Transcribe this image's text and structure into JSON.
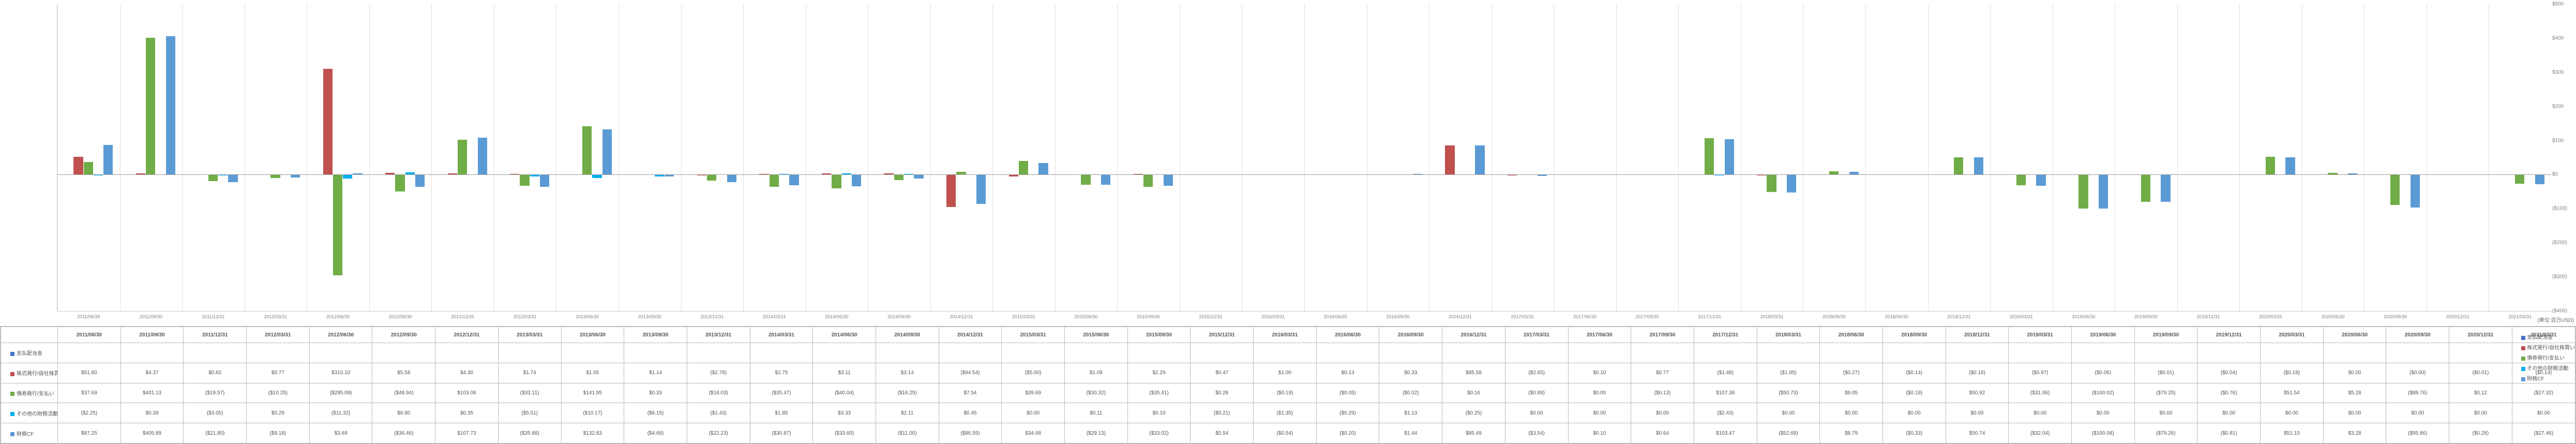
{
  "unit_label": "(単位:百万USD)",
  "chart": {
    "type": "bar",
    "y_min": -400,
    "y_max": 500,
    "y_step": 100,
    "gridline_color": "#e0e0e0",
    "background_color": "#ffffff",
    "categories": [
      "2011/06/30",
      "2011/09/30",
      "2011/12/31",
      "2012/03/31",
      "2012/06/30",
      "2012/09/30",
      "2012/12/31",
      "2013/03/31",
      "2013/06/30",
      "2013/09/30",
      "2013/12/31",
      "2014/03/31",
      "2014/06/30",
      "2014/09/30",
      "2014/12/31",
      "2015/03/31",
      "2015/06/30",
      "2015/09/30",
      "2015/12/31",
      "2016/03/31",
      "2016/06/30",
      "2016/09/30",
      "2016/12/31",
      "2017/03/31",
      "2017/06/30",
      "2017/09/30",
      "2017/12/31",
      "2018/03/31",
      "2018/06/30",
      "2018/09/30",
      "2018/12/31",
      "2019/03/31",
      "2019/06/30",
      "2019/09/30",
      "2019/12/31",
      "2020/03/31",
      "2020/06/30",
      "2020/09/30",
      "2020/12/31",
      "2021/03/31"
    ],
    "series": [
      {
        "name": "支払配当金",
        "color": "#4472c4",
        "values": [
          0,
          0,
          0,
          0,
          0,
          0,
          0,
          0,
          0,
          0,
          0,
          0,
          0,
          0,
          0,
          0,
          0,
          0,
          0,
          0,
          0,
          0,
          0,
          0,
          0,
          0,
          0,
          0,
          0,
          0,
          0,
          0,
          0,
          0,
          0,
          0,
          0,
          0,
          0,
          0
        ]
      },
      {
        "name": "株式発行/自社株買い",
        "color": "#c0504d",
        "values": [
          51.8,
          4.37,
          0.82,
          0.77,
          310.1,
          5.58,
          4.3,
          1.74,
          1.05,
          1.14,
          -2.78,
          2.75,
          3.11,
          3.14,
          -94.54,
          -5.0,
          1.09,
          2.29,
          0.47,
          1.0,
          0.13,
          0.33,
          85.58,
          -2.65,
          0.1,
          0.77,
          -1.48,
          -1.95,
          -0.27,
          -0.14,
          -0.18,
          -0.97,
          -0.06,
          -0.01,
          -0.04,
          -0.18,
          0.0,
          -0.0,
          -0.01,
          -0.14
        ]
      },
      {
        "name": "債券発行/支払い",
        "color": "#70ad47",
        "values": [
          37.69,
          401.13,
          -19.57,
          -10.25,
          -295.09,
          -48.94,
          103.08,
          -32.11,
          141.95,
          0.33,
          -18.03,
          -35.47,
          -40.04,
          -16.25,
          7.54,
          39.69,
          -30.32,
          -35.41,
          0.28,
          -0.19,
          -0.05,
          -0.02,
          0.16,
          -0.89,
          0.0,
          -0.13,
          107.38,
          -50.73,
          9.05,
          -0.19,
          50.92,
          -31.06,
          -100.02,
          -79.25,
          -0.76,
          51.54,
          5.28,
          -88.76,
          0.12,
          -27.32
        ]
      },
      {
        "name": "その他の財務活動",
        "color": "#00b0f0",
        "values": [
          -2.25,
          0.39,
          -3.05,
          0.29,
          -11.32,
          6.9,
          0.35,
          -5.51,
          -10.17,
          -6.15,
          -1.43,
          1.85,
          3.33,
          2.11,
          0.45,
          0.0,
          0.11,
          0.1,
          -0.21,
          -1.35,
          -0.29,
          1.13,
          -0.25,
          0.0,
          0.0,
          0.0,
          -2.43,
          0.0,
          0.0,
          0.0,
          0.0,
          0.0,
          0.0,
          0.0,
          0.0,
          0.0,
          0.0,
          0.0,
          0.0,
          0.0
        ]
      },
      {
        "name": "財務CF",
        "color": "#5b9bd5",
        "values": [
          87.25,
          405.89,
          -21.8,
          -9.18,
          3.69,
          -36.46,
          107.73,
          -35.88,
          132.83,
          -4.68,
          -22.23,
          -30.87,
          -33.6,
          -11.0,
          -86.55,
          34.68,
          -29.13,
          -33.02,
          0.54,
          -0.54,
          -0.2,
          1.44,
          85.49,
          -3.54,
          0.1,
          0.64,
          103.47,
          -52.68,
          8.79,
          -0.33,
          50.74,
          -32.04,
          -100.08,
          -79.26,
          -0.81,
          51.1,
          3.28,
          -95.86,
          -0.28,
          -27.46
        ]
      }
    ]
  },
  "table": {
    "header_empty": "",
    "columns": [
      "2011/06/30",
      "2011/09/30",
      "2011/12/31",
      "2012/03/31",
      "2012/06/30",
      "2012/09/30",
      "2012/12/31",
      "2013/03/31",
      "2013/06/30",
      "2013/09/30",
      "2013/12/31",
      "2014/03/31",
      "2014/06/30",
      "2014/09/30",
      "2014/12/31",
      "2015/03/31",
      "2015/06/30",
      "2015/09/30",
      "2015/12/31",
      "2016/03/31",
      "2016/06/30",
      "2016/09/30",
      "2016/12/31",
      "2017/03/31",
      "2017/06/30",
      "2017/09/30",
      "2017/12/31",
      "2018/03/31",
      "2018/06/30",
      "2018/09/30",
      "2018/12/31",
      "2019/03/31",
      "2019/06/30",
      "2019/09/30",
      "2019/12/31",
      "2020/03/31",
      "2020/06/30",
      "2020/09/30",
      "2020/12/31",
      "2021/03/31"
    ],
    "rows": [
      {
        "label": "支払配当金",
        "color": "#4472c4",
        "cells": [
          "",
          "",
          "",
          "",
          "",
          "",
          "",
          "",
          "",
          "",
          "",
          "",
          "",
          "",
          "",
          "",
          "",
          "",
          "",
          "",
          "",
          "",
          "",
          "",
          "",
          "",
          "",
          "",
          "",
          "",
          "",
          "",
          "",
          "",
          "",
          "",
          "",
          "",
          "",
          ""
        ]
      },
      {
        "label": "株式発行/自社株買い",
        "color": "#c0504d",
        "cells": [
          "$51.80",
          "$4.37",
          "$0.82",
          "$0.77",
          "$310.10",
          "$5.58",
          "$4.30",
          "$1.74",
          "$1.05",
          "$1.14",
          "($2.78)",
          "$2.75",
          "$3.11",
          "$3.14",
          "($94.54)",
          "($5.00)",
          "$1.09",
          "$2.29",
          "$0.47",
          "$1.00",
          "$0.13",
          "$0.33",
          "$85.58",
          "($2.65)",
          "$0.10",
          "$0.77",
          "($1.48)",
          "($1.95)",
          "($0.27)",
          "($0.14)",
          "($0.18)",
          "($0.97)",
          "($0.06)",
          "($0.01)",
          "($0.04)",
          "($0.18)",
          "$0.00",
          "($0.00)",
          "($0.01)",
          "($0.14)"
        ]
      },
      {
        "label": "債券発行/支払い",
        "color": "#70ad47",
        "cells": [
          "$37.69",
          "$401.13",
          "($19.57)",
          "($10.25)",
          "($295.09)",
          "($48.94)",
          "$103.08",
          "($32.11)",
          "$141.95",
          "$0.33",
          "($18.03)",
          "($35.47)",
          "($40.04)",
          "($16.25)",
          "$7.54",
          "$39.69",
          "($30.32)",
          "($35.41)",
          "$0.28",
          "($0.19)",
          "($0.05)",
          "($0.02)",
          "$0.16",
          "($0.89)",
          "$0.00",
          "($0.13)",
          "$107.38",
          "($50.73)",
          "$9.05",
          "($0.19)",
          "$50.92",
          "($31.06)",
          "($100.02)",
          "($79.25)",
          "($0.76)",
          "$51.54",
          "$5.28",
          "($88.76)",
          "$0.12",
          "($27.32)"
        ]
      },
      {
        "label": "その他の財務活動",
        "color": "#00b0f0",
        "cells": [
          "($2.25)",
          "$0.39",
          "($3.05)",
          "$0.29",
          "($11.32)",
          "$6.90",
          "$0.35",
          "($5.51)",
          "($10.17)",
          "($6.15)",
          "($1.43)",
          "$1.85",
          "$3.33",
          "$2.11",
          "$0.45",
          "$0.00",
          "$0.11",
          "$0.10",
          "($0.21)",
          "($1.35)",
          "($0.29)",
          "$1.13",
          "($0.25)",
          "$0.00",
          "$0.00",
          "$0.00",
          "($2.43)",
          "$0.00",
          "$0.00",
          "$0.00",
          "$0.00",
          "$0.00",
          "$0.00",
          "$0.00",
          "$0.00",
          "$0.00",
          "$0.00",
          "$0.00",
          "$0.00",
          "$0.00"
        ]
      },
      {
        "label": "財務CF",
        "color": "#5b9bd5",
        "cells": [
          "$87.25",
          "$405.89",
          "($21.80)",
          "($9.18)",
          "$3.69",
          "($36.46)",
          "$107.73",
          "($35.88)",
          "$132.83",
          "($4.68)",
          "($22.23)",
          "($30.87)",
          "($33.60)",
          "($11.00)",
          "($86.55)",
          "$34.68",
          "($29.13)",
          "($33.02)",
          "$0.54",
          "($0.54)",
          "($0.20)",
          "$1.44",
          "$85.49",
          "($3.54)",
          "$0.10",
          "$0.64",
          "$103.47",
          "($52.68)",
          "$8.79",
          "($0.33)",
          "$50.74",
          "($32.04)",
          "($100.08)",
          "($79.26)",
          "($0.81)",
          "$51.10",
          "$3.28",
          "($95.86)",
          "($0.28)",
          "($27.46)"
        ]
      }
    ]
  },
  "legend": [
    {
      "label": "支払配当金",
      "color": "#4472c4"
    },
    {
      "label": "株式発行/自社株買い",
      "color": "#c0504d"
    },
    {
      "label": "債券発行/支払い",
      "color": "#70ad47"
    },
    {
      "label": "その他の財務活動",
      "color": "#00b0f0"
    },
    {
      "label": "財務CF",
      "color": "#5b9bd5"
    }
  ]
}
